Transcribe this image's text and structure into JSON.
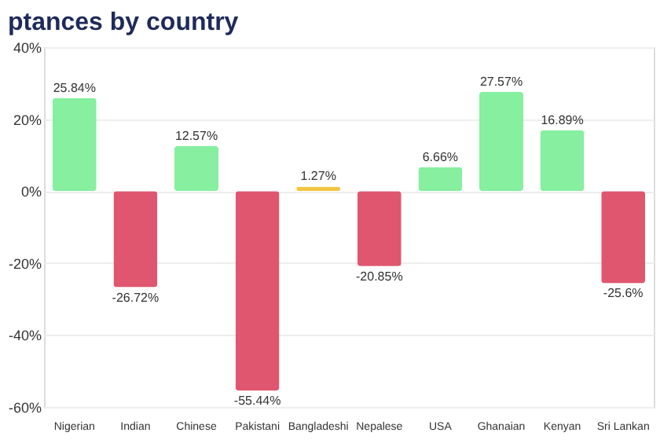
{
  "chart_data": {
    "type": "bar",
    "title": "ptances by country",
    "categories": [
      "Nigerian",
      "Indian",
      "Chinese",
      "Pakistani",
      "Bangladeshi",
      "Nepalese",
      "USA",
      "Ghanaian",
      "Kenyan",
      "Sri Lankan"
    ],
    "values": [
      25.84,
      -26.72,
      12.57,
      -55.44,
      1.27,
      -20.85,
      6.66,
      27.57,
      16.89,
      -25.6
    ],
    "colors": [
      "#86efa0",
      "#e0566f",
      "#86efa0",
      "#e0566f",
      "#f2c744",
      "#e0566f",
      "#86efa0",
      "#86efa0",
      "#86efa0",
      "#e0566f"
    ],
    "ylim": [
      -60,
      40
    ],
    "yticks": [
      {
        "value": -60,
        "label": "-60%"
      },
      {
        "value": -40,
        "label": "-40%"
      },
      {
        "value": -20,
        "label": "-20%"
      },
      {
        "value": 0,
        "label": "0%"
      },
      {
        "value": 20,
        "label": "20%"
      },
      {
        "value": 40,
        "label": "40%"
      }
    ],
    "value_labels": [
      "25.84%",
      "-26.72%",
      "12.57%",
      "-55.44%",
      "1.27%",
      "-20.85%",
      "6.66%",
      "27.57%",
      "16.89%",
      "-25.6%"
    ],
    "grid": "y"
  }
}
